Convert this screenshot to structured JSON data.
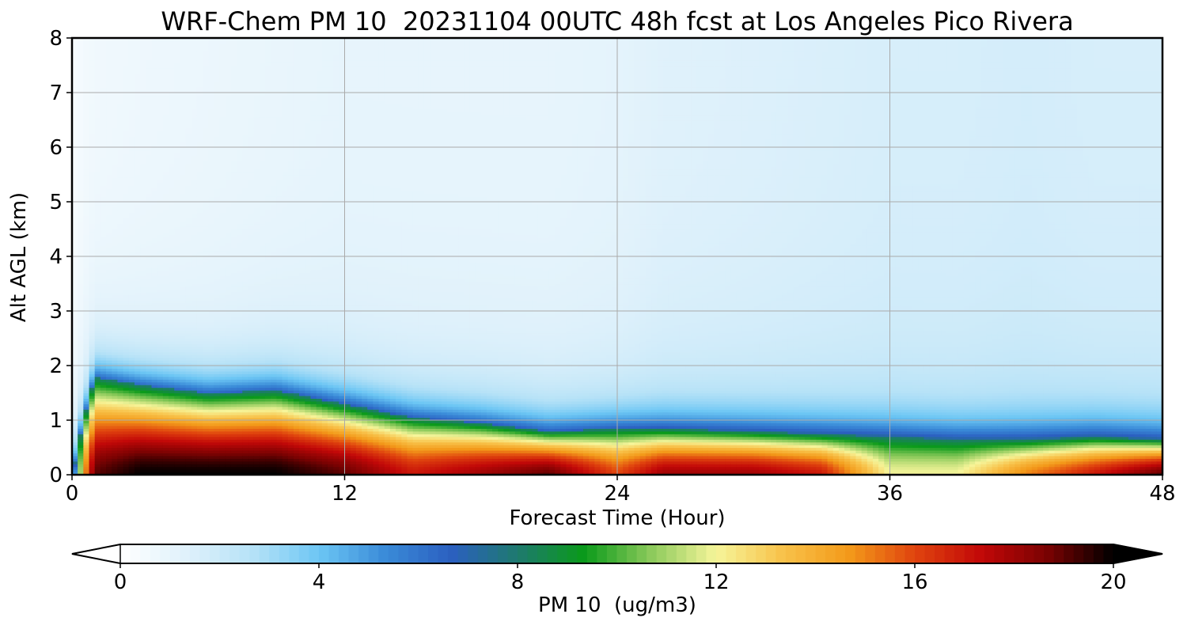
{
  "chart_data": {
    "type": "heatmap",
    "title": "WRF-Chem PM 10  20231104 00UTC 48h fcst at Los Angeles Pico Rivera",
    "xlabel": "Forecast Time (Hour)",
    "ylabel": "Alt AGL (km)",
    "xlim": [
      0,
      48
    ],
    "ylim": [
      0,
      8
    ],
    "x_ticks": [
      "0",
      "12",
      "24",
      "36",
      "48"
    ],
    "y_ticks": [
      "0",
      "1",
      "2",
      "3",
      "4",
      "5",
      "6",
      "7",
      "8"
    ],
    "grid": true,
    "colorbar": {
      "label": "PM 10  (ug/m3)",
      "min": 0,
      "max": 20,
      "ticks": [
        "0",
        "4",
        "8",
        "12",
        "16",
        "20"
      ],
      "extend": "both",
      "colors": [
        "#ffffff",
        "#dff1fb",
        "#b6e2f7",
        "#6cc6f4",
        "#3a8bd8",
        "#2b5fc0",
        "#1e7a6e",
        "#0a9a1a",
        "#8ac95a",
        "#f6f59a",
        "#f8c24a",
        "#f39a1a",
        "#e0440e",
        "#c20808",
        "#7a0202",
        "#000000"
      ]
    },
    "profile_hours": [
      0,
      0.5,
      1,
      3,
      6,
      9,
      12,
      15,
      18,
      21,
      24,
      26,
      30,
      33,
      36,
      39,
      42,
      45,
      48
    ],
    "boundary_layer_top_km": [
      0.0,
      1.0,
      1.8,
      1.65,
      1.5,
      1.55,
      1.3,
      1.05,
      0.95,
      0.8,
      0.85,
      0.85,
      0.8,
      0.75,
      0.7,
      0.65,
      0.65,
      0.7,
      0.65
    ],
    "surface_max_ug_m3": [
      2,
      14,
      19,
      20,
      20,
      20,
      19,
      17,
      18,
      19,
      16,
      18,
      18,
      17,
      12,
      12,
      15,
      17,
      19
    ],
    "aloft_low_ug_m3": [
      0.3,
      0.5,
      0.6,
      0.7,
      0.8,
      0.9,
      1.0,
      1.0,
      1.0,
      1.0,
      1.1,
      1.3,
      1.4,
      1.5,
      1.6,
      1.6,
      1.7,
      1.6,
      1.6
    ]
  }
}
